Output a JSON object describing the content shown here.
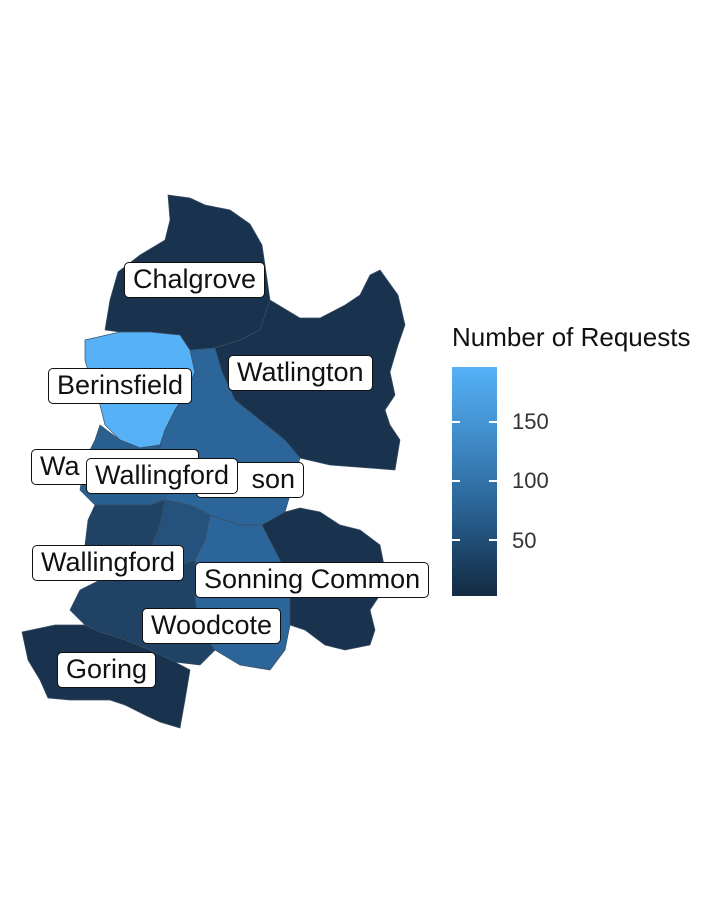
{
  "legend": {
    "title": "Number of Requests",
    "ticks": [
      "150",
      "100",
      "50"
    ],
    "low_color": "#132B43",
    "high_color": "#56B1F7"
  },
  "labels": [
    {
      "name": "Chalgrove"
    },
    {
      "name": "Watlington"
    },
    {
      "name": "Berinsfield"
    },
    {
      "name": "Wa"
    },
    {
      "name": "Wallingford"
    },
    {
      "name": "son"
    },
    {
      "name": "Wallingford"
    },
    {
      "name": "Sonning Common"
    },
    {
      "name": "Woodcote"
    },
    {
      "name": "Goring"
    }
  ],
  "region_colors": {
    "dark": "#19324d",
    "mid_dark": "#1f4265",
    "mid": "#24527d",
    "mid_light": "#2b6599",
    "light": "#56B1F7"
  }
}
